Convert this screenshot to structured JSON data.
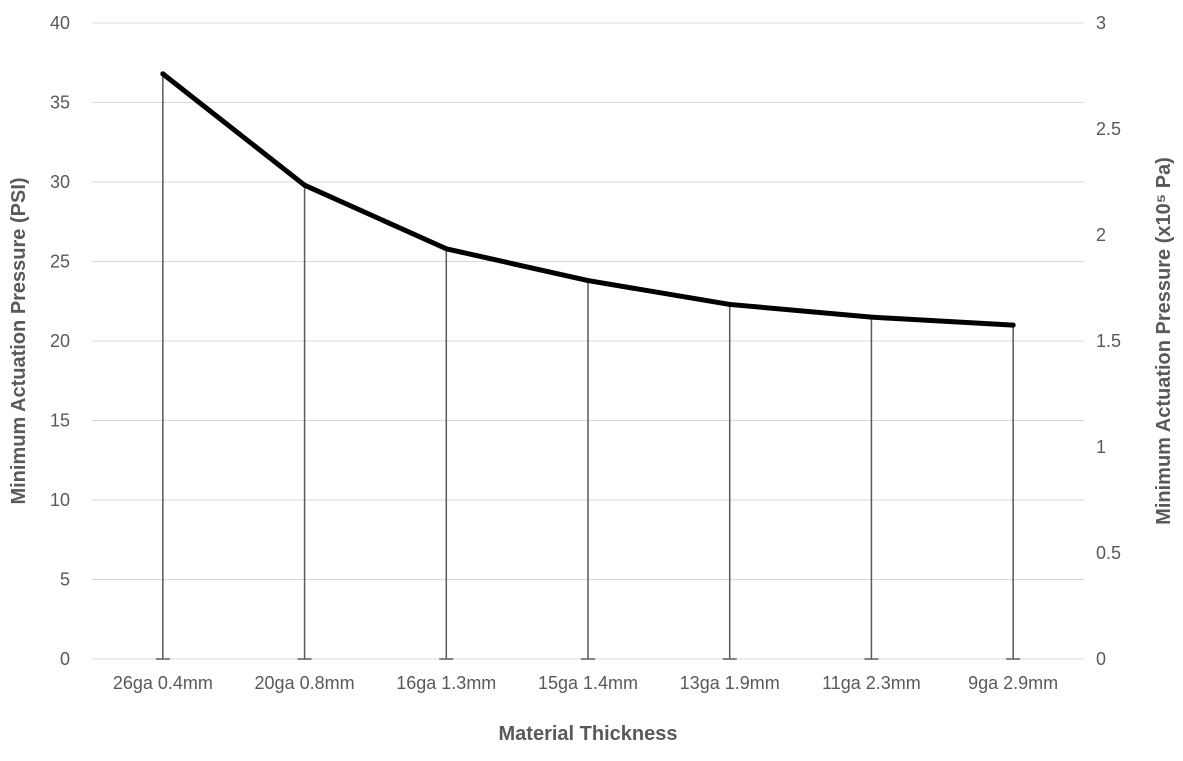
{
  "chart_data": {
    "type": "line",
    "categories": [
      "26ga 0.4mm",
      "20ga 0.8mm",
      "16ga 1.3mm",
      "15ga 1.4mm",
      "13ga 1.9mm",
      "11ga 2.3mm",
      "9ga 2.9mm"
    ],
    "series": [
      {
        "values": [
          36.8,
          29.8,
          25.8,
          23.8,
          22.3,
          21.5,
          21.0
        ]
      }
    ],
    "xlabel": "Material Thickness",
    "ylabel": "Minimum Actuation Pressure (PSI)",
    "y2label": "Minimum Actuation Pressure  (x10⁵ Pa)",
    "ylim": [
      0,
      40
    ],
    "y2lim": [
      0,
      3
    ],
    "yticks": [
      "0",
      "5",
      "10",
      "15",
      "20",
      "25",
      "30",
      "35",
      "40"
    ],
    "y2ticks": [
      "0",
      "0.5",
      "1",
      "1.5",
      "2",
      "2.5",
      "3"
    ],
    "drop_lines": true,
    "grid": true,
    "line_color": "#000000"
  }
}
